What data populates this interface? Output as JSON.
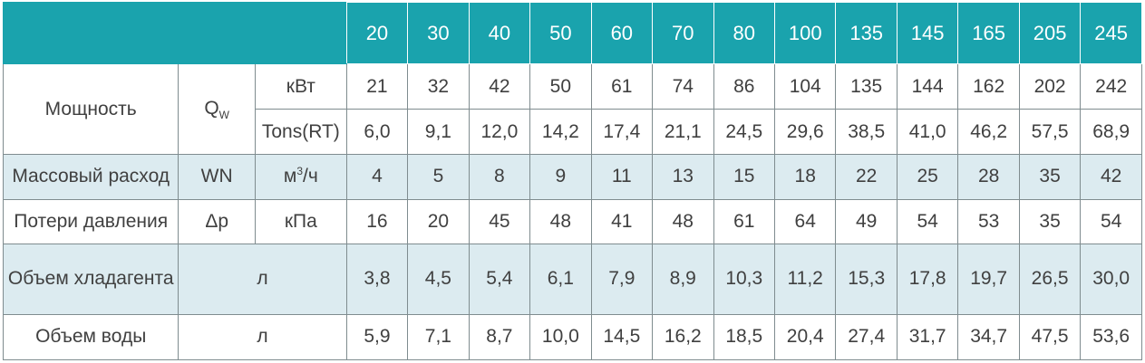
{
  "models": [
    "20",
    "30",
    "40",
    "50",
    "60",
    "70",
    "80",
    "100",
    "135",
    "145",
    "165",
    "205",
    "245"
  ],
  "rows": {
    "power_kw": {
      "param": "Мощность",
      "symbol_base": "Q",
      "symbol_sub": "W",
      "unit": "кВт",
      "values": [
        "21",
        "32",
        "42",
        "50",
        "61",
        "74",
        "86",
        "104",
        "135",
        "144",
        "162",
        "202",
        "242"
      ]
    },
    "power_rt": {
      "unit": "Tons(RT)",
      "values": [
        "6,0",
        "9,1",
        "12,0",
        "14,2",
        "17,4",
        "21,1",
        "24,5",
        "29,6",
        "38,5",
        "41,0",
        "46,2",
        "57,5",
        "68,9"
      ]
    },
    "mass_flow": {
      "param": "Массовый расход",
      "symbol": "WN",
      "unit_base": "м",
      "unit_sup": "3",
      "unit_tail": "/ч",
      "values": [
        "4",
        "5",
        "8",
        "9",
        "11",
        "13",
        "15",
        "18",
        "22",
        "25",
        "28",
        "35",
        "42"
      ]
    },
    "pressure_loss": {
      "param": "Потери давления",
      "symbol": "Δp",
      "unit": "кПа",
      "values": [
        "16",
        "20",
        "45",
        "48",
        "41",
        "48",
        "61",
        "64",
        "49",
        "54",
        "53",
        "35",
        "54"
      ]
    },
    "refrigerant_volume": {
      "param": "Объем хладагента",
      "unit": "л",
      "values": [
        "3,8",
        "4,5",
        "5,4",
        "6,1",
        "7,9",
        "8,9",
        "10,3",
        "11,2",
        "15,3",
        "17,8",
        "19,7",
        "26,5",
        "30,0"
      ]
    },
    "water_volume": {
      "param": "Объем воды",
      "unit": "л",
      "values": [
        "5,9",
        "7,1",
        "8,7",
        "10,0",
        "14,5",
        "16,2",
        "18,5",
        "20,4",
        "27,4",
        "31,7",
        "34,7",
        "47,5",
        "53,6"
      ]
    }
  },
  "colors": {
    "header_bg": "#1aa3ad",
    "tint_row_bg": "#dcebf0",
    "text": "#404040",
    "border": "#7f8c8f"
  }
}
